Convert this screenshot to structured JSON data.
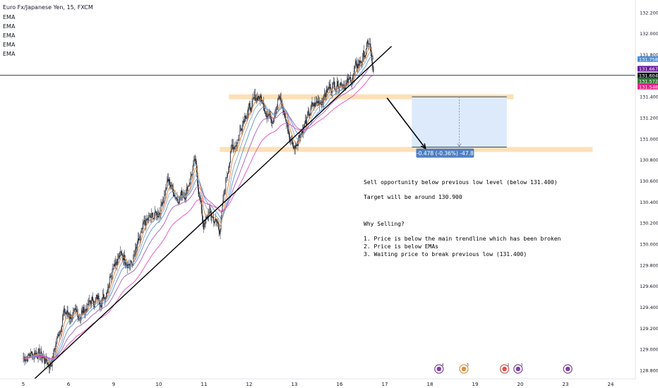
{
  "chart_data": {
    "type": "candlestick",
    "title": "Euro Fx/Japanese Yen, 15, FXCM",
    "legend": [
      "EMA",
      "EMA",
      "EMA",
      "EMA",
      "EMA"
    ],
    "y_ticks": [
      "132.200",
      "132.000",
      "131.800",
      "131.600",
      "131.400",
      "131.200",
      "131.000",
      "130.800",
      "130.600",
      "130.400",
      "130.200",
      "130.000",
      "129.800",
      "129.600",
      "129.400",
      "129.200",
      "129.000",
      "128.800"
    ],
    "x_ticks": [
      "5",
      "6",
      "9",
      "10",
      "11",
      "12",
      "13",
      "16",
      "17",
      "18",
      "19",
      "20",
      "23",
      "24"
    ],
    "ylim": [
      128.72,
      132.32
    ],
    "price_path": [
      {
        "x": 0,
        "y": 128.92
      },
      {
        "x": 0.3,
        "y": 128.98
      },
      {
        "x": 0.6,
        "y": 128.85
      },
      {
        "x": 0.9,
        "y": 129.35
      },
      {
        "x": 1.2,
        "y": 129.3
      },
      {
        "x": 1.5,
        "y": 129.45
      },
      {
        "x": 1.8,
        "y": 129.5
      },
      {
        "x": 2.0,
        "y": 129.85
      },
      {
        "x": 2.2,
        "y": 129.9
      },
      {
        "x": 2.4,
        "y": 129.8
      },
      {
        "x": 2.7,
        "y": 130.2
      },
      {
        "x": 3.0,
        "y": 130.3
      },
      {
        "x": 3.2,
        "y": 130.6
      },
      {
        "x": 3.4,
        "y": 130.45
      },
      {
        "x": 3.6,
        "y": 130.5
      },
      {
        "x": 3.8,
        "y": 130.78
      },
      {
        "x": 3.9,
        "y": 130.45
      },
      {
        "x": 4.0,
        "y": 130.15
      },
      {
        "x": 4.1,
        "y": 130.3
      },
      {
        "x": 4.2,
        "y": 130.25
      },
      {
        "x": 4.35,
        "y": 130.15
      },
      {
        "x": 4.5,
        "y": 130.65
      },
      {
        "x": 4.6,
        "y": 130.9
      },
      {
        "x": 4.75,
        "y": 131.0
      },
      {
        "x": 4.9,
        "y": 131.25
      },
      {
        "x": 5.05,
        "y": 131.3
      },
      {
        "x": 5.2,
        "y": 131.42
      },
      {
        "x": 5.35,
        "y": 131.3
      },
      {
        "x": 5.5,
        "y": 131.2
      },
      {
        "x": 5.65,
        "y": 131.4
      },
      {
        "x": 5.8,
        "y": 131.2
      },
      {
        "x": 5.9,
        "y": 131.0
      },
      {
        "x": 6.0,
        "y": 130.92
      },
      {
        "x": 6.1,
        "y": 131.05
      },
      {
        "x": 6.25,
        "y": 131.15
      },
      {
        "x": 6.4,
        "y": 131.3
      },
      {
        "x": 6.6,
        "y": 131.38
      },
      {
        "x": 6.8,
        "y": 131.5
      },
      {
        "x": 7.0,
        "y": 131.55
      },
      {
        "x": 7.2,
        "y": 131.52
      },
      {
        "x": 7.4,
        "y": 131.7
      },
      {
        "x": 7.55,
        "y": 131.8
      },
      {
        "x": 7.65,
        "y": 131.92
      },
      {
        "x": 7.7,
        "y": 131.78
      },
      {
        "x": 7.75,
        "y": 131.6
      }
    ],
    "ema_periods_factor": [
      0.55,
      0.32,
      0.2,
      0.12,
      0.07
    ],
    "current_price": 131.758,
    "price_tags": [
      {
        "value": 131.758,
        "label": "131.758",
        "color": "#4a8fd8"
      },
      {
        "value": 131.667,
        "label": "131.667",
        "color": "#6a1b9a"
      },
      {
        "value": 131.604,
        "label": "131.604",
        "color": "#131722"
      },
      {
        "value": 131.572,
        "label": "131.572",
        "color": "#2e7d32"
      },
      {
        "value": 131.548,
        "label": "131.548",
        "color": "#e91e8c"
      }
    ],
    "horizontal_line": 131.604,
    "resistance_zone": {
      "value": 131.4
    },
    "support_zone": {
      "value": 130.9
    },
    "trendline": {
      "from": {
        "x": 0.25,
        "y": 128.72
      },
      "to": {
        "x": 8.15,
        "y": 131.88
      }
    },
    "projection_box": {
      "x_from": 8.6,
      "x_to": 10.7,
      "y_from": 131.4,
      "y_to": 130.922
    },
    "arrow": {
      "from": {
        "x": 8.05,
        "y": 131.39
      },
      "to": {
        "x": 8.9,
        "y": 130.91
      }
    },
    "measure_label": "-0.478 (-0.36%) -47.8",
    "notes": [
      "Sell opportunity below previous low level (below 131.400)",
      "Target will be around 130.900",
      "Why Selling?",
      "1. Price is below the main trendline which has been broken",
      "2. Price is below EMAs",
      "3. Waiting price to break previous low (131.400)"
    ],
    "event_markers": [
      {
        "x": 9.2,
        "label": "4",
        "color": "#7b3fa0"
      },
      {
        "x": 9.75,
        "label": "3",
        "color": "#e0913c"
      },
      {
        "x": 10.65,
        "label": "2",
        "color": "#d9534f"
      },
      {
        "x": 10.95,
        "label": "3",
        "color": "#7b3fa0"
      },
      {
        "x": 12.05,
        "label": "",
        "color": "#7b3fa0"
      }
    ],
    "colors": {
      "ema": [
        "#e97d2e",
        "#8fa8c8",
        "#5a8fd6",
        "#a35fc4",
        "#e64fb8"
      ],
      "candles": "#131722",
      "zone": "#fde0b8",
      "box": "#dceafb",
      "box_border": "#3f4652",
      "measure_label_bg": "#4f7fc2",
      "note_text": "#000000"
    },
    "grid": false
  }
}
